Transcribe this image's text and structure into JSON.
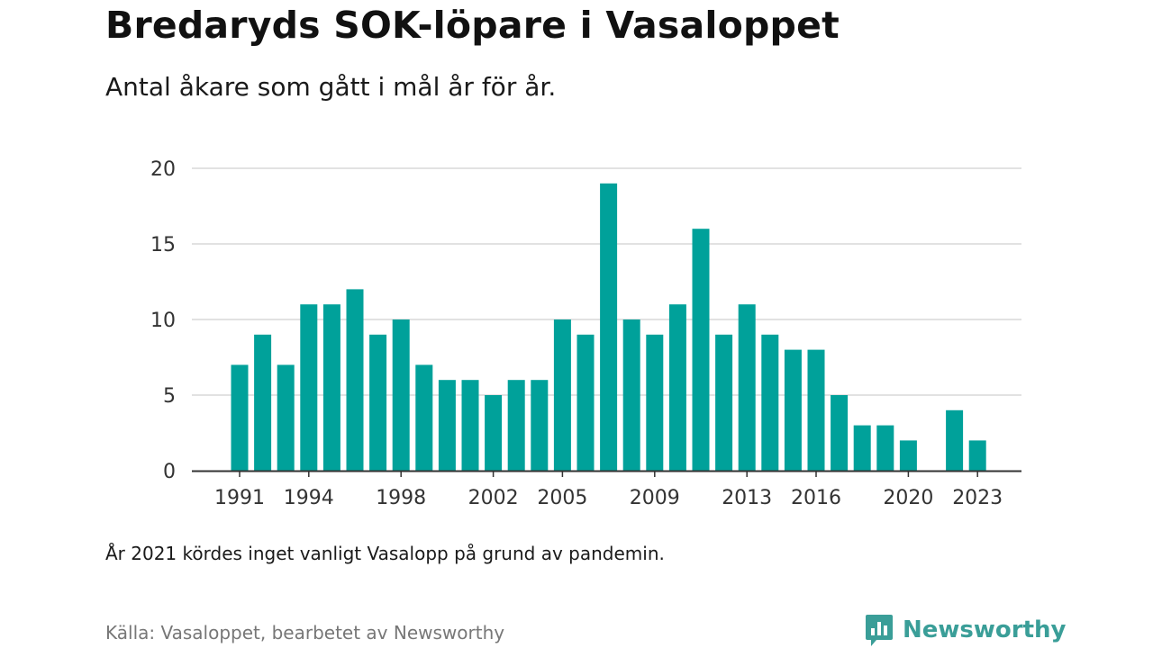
{
  "header": {
    "title": "Bredaryds SOK-löpare i Vasaloppet",
    "subtitle": "Antal åkare som gått i mål år för år."
  },
  "footer": {
    "note": "År 2021 kördes inget vanligt Vasalopp på grund av pandemin.",
    "source": "Källa: Vasaloppet, bearbetet av Newsworthy",
    "brand": "Newsworthy"
  },
  "colors": {
    "bar": "#00a19a",
    "grid": "#d9d9d9",
    "axis": "#333333",
    "brand": "#3a9e98"
  },
  "chart_data": {
    "type": "bar",
    "title": "Bredaryds SOK-löpare i Vasaloppet",
    "subtitle": "Antal åkare som gått i mål år för år.",
    "xlabel": "",
    "ylabel": "",
    "ylim": [
      0,
      20
    ],
    "yticks": [
      0,
      5,
      10,
      15,
      20
    ],
    "xticks": [
      1991,
      1994,
      1998,
      2002,
      2005,
      2009,
      2013,
      2016,
      2020,
      2023
    ],
    "grid": true,
    "legend": "none",
    "categories": [
      1991,
      1992,
      1993,
      1994,
      1995,
      1996,
      1997,
      1998,
      1999,
      2000,
      2001,
      2002,
      2003,
      2004,
      2005,
      2006,
      2007,
      2008,
      2009,
      2010,
      2011,
      2012,
      2013,
      2014,
      2015,
      2016,
      2017,
      2018,
      2019,
      2020,
      2021,
      2022,
      2023
    ],
    "values": [
      7,
      9,
      7,
      11,
      11,
      12,
      9,
      10,
      7,
      6,
      6,
      5,
      6,
      6,
      10,
      9,
      19,
      10,
      9,
      11,
      16,
      9,
      11,
      9,
      8,
      8,
      5,
      3,
      3,
      2,
      null,
      4,
      2
    ]
  }
}
